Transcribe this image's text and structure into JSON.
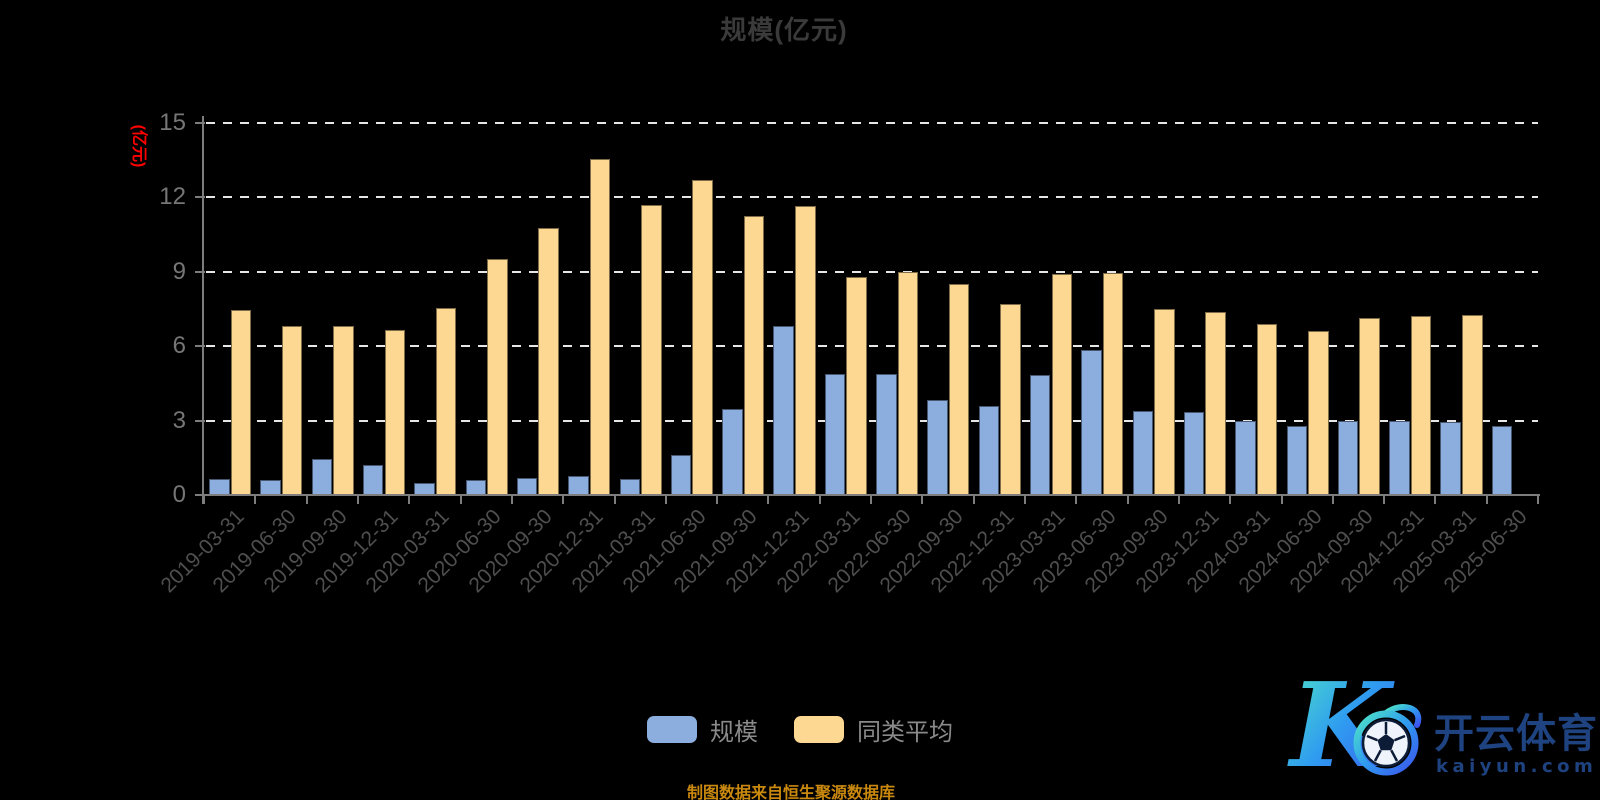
{
  "title": "规模(亿元)",
  "y_axis": {
    "name": "(亿元)",
    "name_color": "#ff0000"
  },
  "caption": {
    "text": "制图数据来自恒生聚源数据库",
    "color": "#c9880e"
  },
  "watermark": {
    "brand": "开云体育",
    "domain": "kaiyun.com"
  },
  "colors": {
    "background": "#000000",
    "grid": "#e6e6e6",
    "axis": "#7d7d7d",
    "title_text": "#3a3a3a",
    "x_label_text": "#4f4f4f",
    "y_label_text": "#767676",
    "legend_text": "#8a8a8a",
    "caption_text": "#c9880e",
    "series_scale": "#8CAEDE",
    "series_average": "#FCD893",
    "watermark_text": "#1e4380"
  },
  "chart_data": {
    "type": "bar",
    "title": "规模(亿元)",
    "xlabel": "",
    "ylabel": "(亿元)",
    "ylim": [
      0,
      15
    ],
    "yticks": [
      0,
      3,
      6,
      9,
      12,
      15
    ],
    "grid": true,
    "legend_position": "bottom",
    "categories": [
      "2019-03-31",
      "2019-06-30",
      "2019-09-30",
      "2019-12-31",
      "2020-03-31",
      "2020-06-30",
      "2020-09-30",
      "2020-12-31",
      "2021-03-31",
      "2021-06-30",
      "2021-09-30",
      "2021-12-31",
      "2022-03-31",
      "2022-06-30",
      "2022-09-30",
      "2022-12-31",
      "2023-03-31",
      "2023-06-30",
      "2023-09-30",
      "2023-12-31",
      "2024-03-31",
      "2024-06-30",
      "2024-09-30",
      "2024-12-31",
      "2025-03-31",
      "2025-06-30"
    ],
    "series": [
      {
        "name": "规模",
        "color": "#8CAEDE",
        "values": [
          0.65,
          0.6,
          1.45,
          1.2,
          0.5,
          0.6,
          0.7,
          0.75,
          0.65,
          1.6,
          3.45,
          6.8,
          4.9,
          4.9,
          3.85,
          3.6,
          4.85,
          5.85,
          3.4,
          3.35,
          3.0,
          2.8,
          3.0,
          3.0,
          2.95,
          2.8
        ]
      },
      {
        "name": "同类平均",
        "color": "#FCD893",
        "values": [
          7.45,
          6.8,
          6.8,
          6.65,
          7.55,
          9.5,
          10.75,
          13.55,
          11.7,
          12.7,
          11.25,
          11.65,
          8.8,
          9.0,
          8.5,
          7.7,
          8.9,
          8.95,
          7.5,
          7.4,
          6.9,
          6.6,
          7.15,
          7.2,
          7.25,
          null
        ]
      }
    ]
  }
}
